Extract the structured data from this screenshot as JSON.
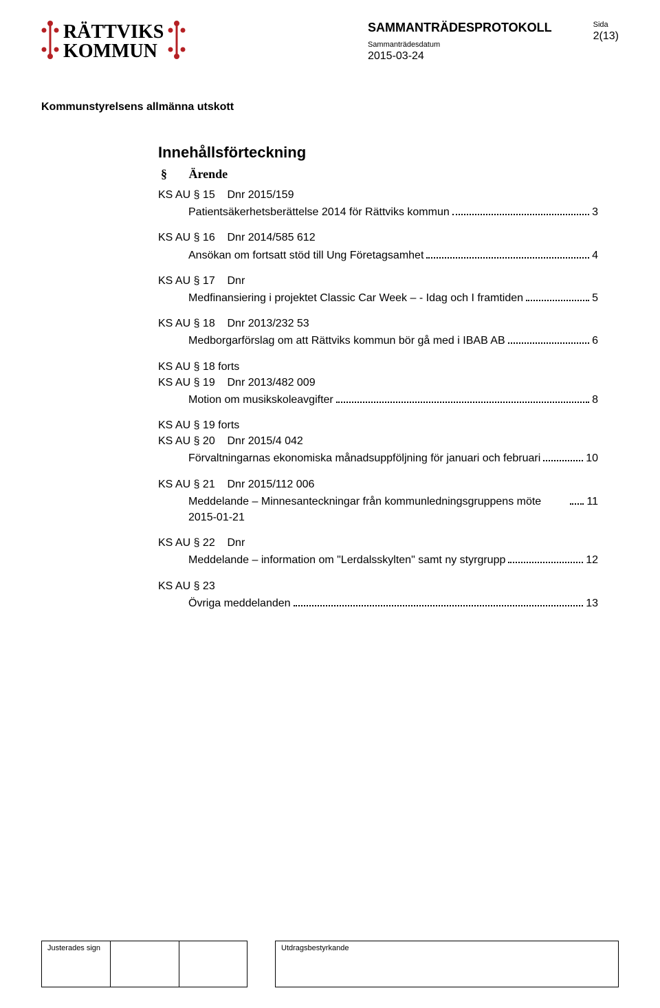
{
  "header": {
    "logo_line1": "RÄTTVIKS",
    "logo_line2": "KOMMUN",
    "doc_title": "SAMMANTRÄDESPROTOKOLL",
    "date_label": "Sammanträdesdatum",
    "date_value": "2015-03-24",
    "page_label": "Sida",
    "page_value": "2(13)"
  },
  "committee": "Kommunstyrelsens allmänna utskott",
  "toc": {
    "title": "Innehållsförteckning",
    "col_section": "§",
    "col_matter": "Ärende",
    "items": [
      {
        "ref": "KS AU § 15    Dnr 2015/159",
        "desc": "Patientsäkerhetsberättelse 2014 för Rättviks kommun",
        "page": "3"
      },
      {
        "ref": "KS AU § 16    Dnr 2014/585 612",
        "desc": "Ansökan om fortsatt stöd till Ung Företagsamhet",
        "page": "4"
      },
      {
        "ref": "KS AU § 17    Dnr",
        "desc": "Medfinansiering i projektet Classic Car Week – - Idag och I framtiden",
        "page": "5"
      },
      {
        "ref": "KS AU § 18    Dnr 2013/232 53",
        "desc": "Medborgarförslag om att Rättviks kommun bör gå med i IBAB AB",
        "page": "6"
      },
      {
        "ref": "KS AU § 18 forts\nKS AU § 19    Dnr 2013/482 009",
        "desc": "Motion om musikskoleavgifter",
        "page": "8"
      },
      {
        "ref": "KS AU § 19 forts\nKS AU § 20    Dnr 2015/4 042",
        "desc": "Förvaltningarnas ekonomiska månadsuppföljning för januari och februari",
        "page": "10"
      },
      {
        "ref": "KS AU § 21    Dnr 2015/112 006",
        "desc": "Meddelande – Minnesanteckningar från kommunledningsgruppens möte 2015-01-21",
        "page": "11"
      },
      {
        "ref": "KS AU § 22    Dnr",
        "desc": "Meddelande – information om \"Lerdalsskylten\" samt ny styrgrupp",
        "page": "12"
      },
      {
        "ref": "KS AU § 23",
        "desc": "Övriga meddelanden",
        "page": "13"
      }
    ]
  },
  "footer": {
    "sign_label": "Justerades sign",
    "utdrag_label": "Utdragsbestyrkande"
  },
  "colors": {
    "logo_red": "#b52024",
    "text": "#000000",
    "background": "#ffffff"
  }
}
